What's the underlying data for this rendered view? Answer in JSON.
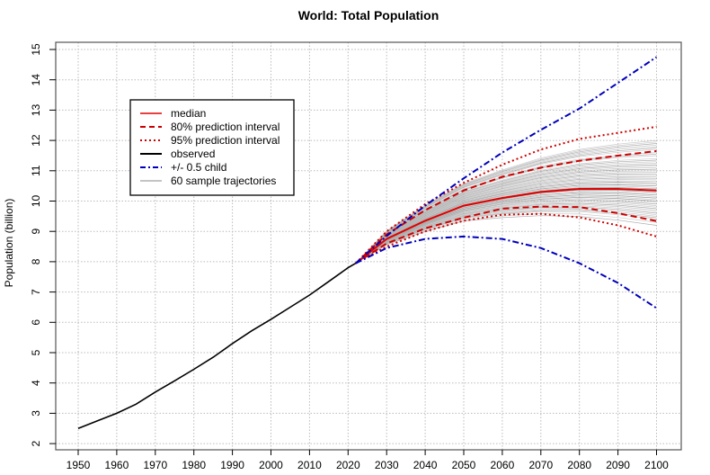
{
  "chart_data": {
    "type": "line",
    "title": "World: Total Population",
    "xlabel": "",
    "ylabel": "Population (billion)",
    "xlim": [
      1945,
      2105
    ],
    "ylim": [
      2,
      15
    ],
    "x_ticks": [
      1950,
      1960,
      1970,
      1980,
      1990,
      2000,
      2010,
      2020,
      2030,
      2040,
      2050,
      2060,
      2070,
      2080,
      2090,
      2100
    ],
    "y_ticks": [
      2,
      3,
      4,
      5,
      6,
      7,
      8,
      9,
      10,
      11,
      12,
      13,
      14,
      15
    ],
    "grid": true,
    "legend_position": "top-left",
    "colors": {
      "median": "#e00000",
      "interval": "#cc0000",
      "observed": "#000000",
      "child": "#0000bb",
      "trajectory": "#888888"
    },
    "legend": [
      {
        "label": "median",
        "style": "solid-red"
      },
      {
        "label": "80% prediction interval",
        "style": "dashed-red"
      },
      {
        "label": "95% prediction interval",
        "style": "dotted-red"
      },
      {
        "label": "observed",
        "style": "solid-black"
      },
      {
        "label": "+/- 0.5 child",
        "style": "dashdot-blue"
      },
      {
        "label": "60 sample trajectories",
        "style": "thin-grey"
      }
    ],
    "series": [
      {
        "name": "observed",
        "x": [
          1950,
          1955,
          1960,
          1965,
          1970,
          1975,
          1980,
          1985,
          1990,
          1995,
          2000,
          2005,
          2010,
          2015,
          2020,
          2022
        ],
        "values": [
          2.5,
          2.75,
          3.0,
          3.3,
          3.7,
          4.07,
          4.45,
          4.85,
          5.3,
          5.72,
          6.1,
          6.5,
          6.9,
          7.35,
          7.8,
          7.95
        ]
      },
      {
        "name": "median",
        "x": [
          2022,
          2030,
          2040,
          2050,
          2060,
          2070,
          2080,
          2090,
          2100
        ],
        "values": [
          7.95,
          8.75,
          9.35,
          9.85,
          10.1,
          10.3,
          10.4,
          10.4,
          10.35
        ]
      },
      {
        "name": "80% prediction interval upper",
        "x": [
          2022,
          2030,
          2040,
          2050,
          2060,
          2070,
          2080,
          2090,
          2100
        ],
        "values": [
          7.95,
          8.9,
          9.7,
          10.35,
          10.8,
          11.1,
          11.33,
          11.5,
          11.65
        ]
      },
      {
        "name": "80% prediction interval lower",
        "x": [
          2022,
          2030,
          2040,
          2050,
          2060,
          2070,
          2080,
          2090,
          2100
        ],
        "values": [
          7.95,
          8.6,
          9.1,
          9.45,
          9.75,
          9.82,
          9.8,
          9.6,
          9.34
        ]
      },
      {
        "name": "95% prediction interval upper",
        "x": [
          2022,
          2030,
          2040,
          2050,
          2060,
          2070,
          2080,
          2090,
          2100
        ],
        "values": [
          7.95,
          9.0,
          9.9,
          10.6,
          11.2,
          11.7,
          12.05,
          12.25,
          12.45
        ]
      },
      {
        "name": "95% prediction interval lower",
        "x": [
          2022,
          2030,
          2040,
          2050,
          2060,
          2070,
          2080,
          2090,
          2100
        ],
        "values": [
          7.95,
          8.5,
          9.0,
          9.35,
          9.55,
          9.58,
          9.46,
          9.2,
          8.83
        ]
      },
      {
        "name": "+/- 0.5 child upper",
        "x": [
          2022,
          2030,
          2040,
          2050,
          2060,
          2070,
          2080,
          2090,
          2100
        ],
        "values": [
          7.95,
          8.85,
          9.85,
          10.75,
          11.6,
          12.35,
          13.05,
          13.9,
          14.75
        ]
      },
      {
        "name": "+/- 0.5 child lower",
        "x": [
          2022,
          2030,
          2040,
          2050,
          2060,
          2070,
          2080,
          2090,
          2100
        ],
        "values": [
          7.95,
          8.45,
          8.75,
          8.83,
          8.75,
          8.45,
          7.95,
          7.3,
          6.47
        ]
      }
    ],
    "sample_trajectories_2100": [
      9.2,
      9.3,
      9.4,
      9.45,
      9.5,
      9.55,
      9.6,
      9.65,
      9.7,
      9.75,
      9.8,
      9.85,
      9.9,
      9.95,
      10.0,
      10.0,
      10.05,
      10.1,
      10.1,
      10.15,
      10.2,
      10.2,
      10.25,
      10.3,
      10.3,
      10.35,
      10.4,
      10.4,
      10.45,
      10.5,
      10.5,
      10.55,
      10.6,
      10.6,
      10.65,
      10.7,
      10.75,
      10.8,
      10.85,
      10.9,
      10.95,
      11.0,
      11.05,
      11.1,
      11.15,
      11.2,
      11.25,
      11.3,
      11.35,
      11.4,
      11.5,
      11.55,
      11.6,
      11.7,
      11.75,
      11.8,
      11.85,
      11.9,
      11.95,
      12.0
    ]
  }
}
